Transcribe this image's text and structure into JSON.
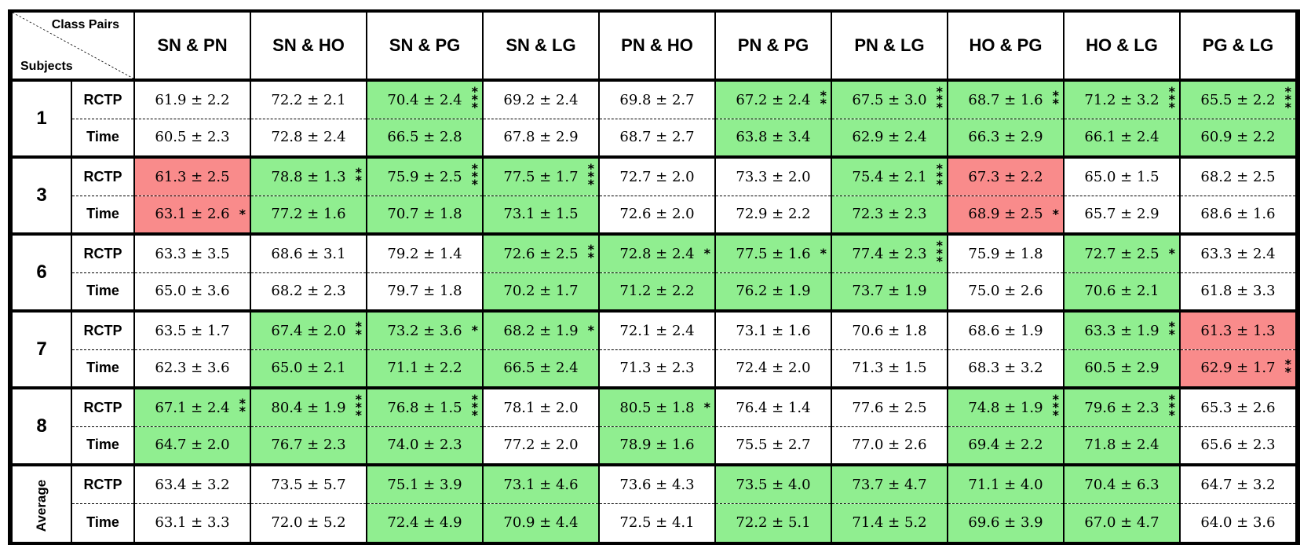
{
  "header": {
    "class_pairs_label": "Class Pairs",
    "subjects_label": "Subjects",
    "columns": [
      "SN & PN",
      "SN & HO",
      "SN & PG",
      "SN & LG",
      "PN & HO",
      "PN & PG",
      "PN & LG",
      "HO & PG",
      "HO & LG",
      "PG & LG"
    ]
  },
  "colors": {
    "significant_higher": "#90ee90",
    "significant_lower": "#f98b8b"
  },
  "groups": [
    {
      "subject": "1",
      "rows": [
        {
          "metric": "RCTP",
          "cells": [
            {
              "v": "61.9 ± 2.2",
              "c": "",
              "s": 0
            },
            {
              "v": "72.2 ± 2.1",
              "c": "",
              "s": 0
            },
            {
              "v": "70.4 ± 2.4",
              "c": "g",
              "s": 3
            },
            {
              "v": "69.2 ± 2.4",
              "c": "",
              "s": 0
            },
            {
              "v": "69.8 ± 2.7",
              "c": "",
              "s": 0
            },
            {
              "v": "67.2 ± 2.4",
              "c": "g",
              "s": 2
            },
            {
              "v": "67.5 ± 3.0",
              "c": "g",
              "s": 3
            },
            {
              "v": "68.7 ± 1.6",
              "c": "g",
              "s": 2
            },
            {
              "v": "71.2 ± 3.2",
              "c": "g",
              "s": 3
            },
            {
              "v": "65.5 ± 2.2",
              "c": "g",
              "s": 3
            }
          ]
        },
        {
          "metric": "Time",
          "cells": [
            {
              "v": "60.5 ± 2.3",
              "c": "",
              "s": 0
            },
            {
              "v": "72.8 ± 2.4",
              "c": "",
              "s": 0
            },
            {
              "v": "66.5 ± 2.8",
              "c": "g",
              "s": 0
            },
            {
              "v": "67.8 ± 2.9",
              "c": "",
              "s": 0
            },
            {
              "v": "68.7 ± 2.7",
              "c": "",
              "s": 0
            },
            {
              "v": "63.8 ± 3.4",
              "c": "g",
              "s": 0
            },
            {
              "v": "62.9 ± 2.4",
              "c": "g",
              "s": 0
            },
            {
              "v": "66.3 ± 2.9",
              "c": "g",
              "s": 0
            },
            {
              "v": "66.1 ± 2.4",
              "c": "g",
              "s": 0
            },
            {
              "v": "60.9 ± 2.2",
              "c": "g",
              "s": 0
            }
          ]
        }
      ]
    },
    {
      "subject": "3",
      "rows": [
        {
          "metric": "RCTP",
          "cells": [
            {
              "v": "61.3 ± 2.5",
              "c": "r",
              "s": 0
            },
            {
              "v": "78.8 ± 1.3",
              "c": "g",
              "s": 2
            },
            {
              "v": "75.9 ± 2.5",
              "c": "g",
              "s": 3
            },
            {
              "v": "77.5 ± 1.7",
              "c": "g",
              "s": 3
            },
            {
              "v": "72.7 ± 2.0",
              "c": "",
              "s": 0
            },
            {
              "v": "73.3 ± 2.0",
              "c": "",
              "s": 0
            },
            {
              "v": "75.4 ± 2.1",
              "c": "g",
              "s": 3
            },
            {
              "v": "67.3 ± 2.2",
              "c": "r",
              "s": 0
            },
            {
              "v": "65.0 ± 1.5",
              "c": "",
              "s": 0
            },
            {
              "v": "68.2 ± 2.5",
              "c": "",
              "s": 0
            }
          ]
        },
        {
          "metric": "Time",
          "cells": [
            {
              "v": "63.1 ± 2.6",
              "c": "r",
              "s": 1
            },
            {
              "v": "77.2 ± 1.6",
              "c": "g",
              "s": 0
            },
            {
              "v": "70.7 ± 1.8",
              "c": "g",
              "s": 0
            },
            {
              "v": "73.1 ± 1.5",
              "c": "g",
              "s": 0
            },
            {
              "v": "72.6 ± 2.0",
              "c": "",
              "s": 0
            },
            {
              "v": "72.9 ± 2.2",
              "c": "",
              "s": 0
            },
            {
              "v": "72.3 ± 2.3",
              "c": "g",
              "s": 0
            },
            {
              "v": "68.9 ± 2.5",
              "c": "r",
              "s": 1
            },
            {
              "v": "65.7 ± 2.9",
              "c": "",
              "s": 0
            },
            {
              "v": "68.6 ± 1.6",
              "c": "",
              "s": 0
            }
          ]
        }
      ]
    },
    {
      "subject": "6",
      "rows": [
        {
          "metric": "RCTP",
          "cells": [
            {
              "v": "63.3 ± 3.5",
              "c": "",
              "s": 0
            },
            {
              "v": "68.6 ± 3.1",
              "c": "",
              "s": 0
            },
            {
              "v": "79.2 ± 1.4",
              "c": "",
              "s": 0
            },
            {
              "v": "72.6 ± 2.5",
              "c": "g",
              "s": 2
            },
            {
              "v": "72.8 ± 2.4",
              "c": "g",
              "s": 1
            },
            {
              "v": "77.5 ± 1.6",
              "c": "g",
              "s": 1
            },
            {
              "v": "77.4 ± 2.3",
              "c": "g",
              "s": 3
            },
            {
              "v": "75.9 ± 1.8",
              "c": "",
              "s": 0
            },
            {
              "v": "72.7 ± 2.5",
              "c": "g",
              "s": 1
            },
            {
              "v": "63.3 ± 2.4",
              "c": "",
              "s": 0
            }
          ]
        },
        {
          "metric": "Time",
          "cells": [
            {
              "v": "65.0 ± 3.6",
              "c": "",
              "s": 0
            },
            {
              "v": "68.2 ± 2.3",
              "c": "",
              "s": 0
            },
            {
              "v": "79.7 ± 1.8",
              "c": "",
              "s": 0
            },
            {
              "v": "70.2 ± 1.7",
              "c": "g",
              "s": 0
            },
            {
              "v": "71.2 ± 2.2",
              "c": "g",
              "s": 0
            },
            {
              "v": "76.2 ± 1.9",
              "c": "g",
              "s": 0
            },
            {
              "v": "73.7 ± 1.9",
              "c": "g",
              "s": 0
            },
            {
              "v": "75.0 ± 2.6",
              "c": "",
              "s": 0
            },
            {
              "v": "70.6 ± 2.1",
              "c": "g",
              "s": 0
            },
            {
              "v": "61.8 ± 3.3",
              "c": "",
              "s": 0
            }
          ]
        }
      ]
    },
    {
      "subject": "7",
      "rows": [
        {
          "metric": "RCTP",
          "cells": [
            {
              "v": "63.5 ± 1.7",
              "c": "",
              "s": 0
            },
            {
              "v": "67.4 ± 2.0",
              "c": "g",
              "s": 2
            },
            {
              "v": "73.2 ± 3.6",
              "c": "g",
              "s": 1
            },
            {
              "v": "68.2 ± 1.9",
              "c": "g",
              "s": 1
            },
            {
              "v": "72.1 ± 2.4",
              "c": "",
              "s": 0
            },
            {
              "v": "73.1 ± 1.6",
              "c": "",
              "s": 0
            },
            {
              "v": "70.6 ± 1.8",
              "c": "",
              "s": 0
            },
            {
              "v": "68.6 ± 1.9",
              "c": "",
              "s": 0
            },
            {
              "v": "63.3 ± 1.9",
              "c": "g",
              "s": 2
            },
            {
              "v": "61.3 ± 1.3",
              "c": "r",
              "s": 0
            }
          ]
        },
        {
          "metric": "Time",
          "cells": [
            {
              "v": "62.3 ± 3.6",
              "c": "",
              "s": 0
            },
            {
              "v": "65.0 ± 2.1",
              "c": "g",
              "s": 0
            },
            {
              "v": "71.1 ± 2.2",
              "c": "g",
              "s": 0
            },
            {
              "v": "66.5 ± 2.4",
              "c": "g",
              "s": 0
            },
            {
              "v": "71.3 ± 2.3",
              "c": "",
              "s": 0
            },
            {
              "v": "72.4 ± 2.0",
              "c": "",
              "s": 0
            },
            {
              "v": "71.3 ± 1.5",
              "c": "",
              "s": 0
            },
            {
              "v": "68.3 ± 3.2",
              "c": "",
              "s": 0
            },
            {
              "v": "60.5 ± 2.9",
              "c": "g",
              "s": 0
            },
            {
              "v": "62.9 ± 1.7",
              "c": "r",
              "s": 2
            }
          ]
        }
      ]
    },
    {
      "subject": "8",
      "rows": [
        {
          "metric": "RCTP",
          "cells": [
            {
              "v": "67.1 ± 2.4",
              "c": "g",
              "s": 2
            },
            {
              "v": "80.4 ± 1.9",
              "c": "g",
              "s": 3
            },
            {
              "v": "76.8 ± 1.5",
              "c": "g",
              "s": 3
            },
            {
              "v": "78.1 ± 2.0",
              "c": "",
              "s": 0
            },
            {
              "v": "80.5 ± 1.8",
              "c": "g",
              "s": 1
            },
            {
              "v": "76.4 ± 1.4",
              "c": "",
              "s": 0
            },
            {
              "v": "77.6 ± 2.5",
              "c": "",
              "s": 0
            },
            {
              "v": "74.8 ± 1.9",
              "c": "g",
              "s": 3
            },
            {
              "v": "79.6 ± 2.3",
              "c": "g",
              "s": 3
            },
            {
              "v": "65.3 ± 2.6",
              "c": "",
              "s": 0
            }
          ]
        },
        {
          "metric": "Time",
          "cells": [
            {
              "v": "64.7 ± 2.0",
              "c": "g",
              "s": 0
            },
            {
              "v": "76.7 ± 2.3",
              "c": "g",
              "s": 0
            },
            {
              "v": "74.0 ± 2.3",
              "c": "g",
              "s": 0
            },
            {
              "v": "77.2 ± 2.0",
              "c": "",
              "s": 0
            },
            {
              "v": "78.9 ± 1.6",
              "c": "g",
              "s": 0
            },
            {
              "v": "75.5 ± 2.7",
              "c": "",
              "s": 0
            },
            {
              "v": "77.0 ± 2.6",
              "c": "",
              "s": 0
            },
            {
              "v": "69.4 ± 2.2",
              "c": "g",
              "s": 0
            },
            {
              "v": "71.8 ± 2.4",
              "c": "g",
              "s": 0
            },
            {
              "v": "65.6 ± 2.3",
              "c": "",
              "s": 0
            }
          ]
        }
      ]
    },
    {
      "subject": "Average",
      "rows": [
        {
          "metric": "RCTP",
          "cells": [
            {
              "v": "63.4 ± 3.2",
              "c": "",
              "s": 0
            },
            {
              "v": "73.5 ± 5.7",
              "c": "",
              "s": 0
            },
            {
              "v": "75.1 ± 3.9",
              "c": "g",
              "s": 0
            },
            {
              "v": "73.1 ± 4.6",
              "c": "g",
              "s": 0
            },
            {
              "v": "73.6 ± 4.3",
              "c": "",
              "s": 0
            },
            {
              "v": "73.5 ± 4.0",
              "c": "g",
              "s": 0
            },
            {
              "v": "73.7 ± 4.7",
              "c": "g",
              "s": 0
            },
            {
              "v": "71.1 ± 4.0",
              "c": "g",
              "s": 0
            },
            {
              "v": "70.4 ± 6.3",
              "c": "g",
              "s": 0
            },
            {
              "v": "64.7 ± 3.2",
              "c": "",
              "s": 0
            }
          ]
        },
        {
          "metric": "Time",
          "cells": [
            {
              "v": "63.1 ± 3.3",
              "c": "",
              "s": 0
            },
            {
              "v": "72.0 ± 5.2",
              "c": "",
              "s": 0
            },
            {
              "v": "72.4 ± 4.9",
              "c": "g",
              "s": 0
            },
            {
              "v": "70.9 ± 4.4",
              "c": "g",
              "s": 0
            },
            {
              "v": "72.5 ± 4.1",
              "c": "",
              "s": 0
            },
            {
              "v": "72.2 ± 5.1",
              "c": "g",
              "s": 0
            },
            {
              "v": "71.4 ± 5.2",
              "c": "g",
              "s": 0
            },
            {
              "v": "69.6 ± 3.9",
              "c": "g",
              "s": 0
            },
            {
              "v": "67.0  ± 4.7",
              "c": "g",
              "s": 0
            },
            {
              "v": "64.0 ± 3.6",
              "c": "",
              "s": 0
            }
          ]
        }
      ]
    }
  ]
}
